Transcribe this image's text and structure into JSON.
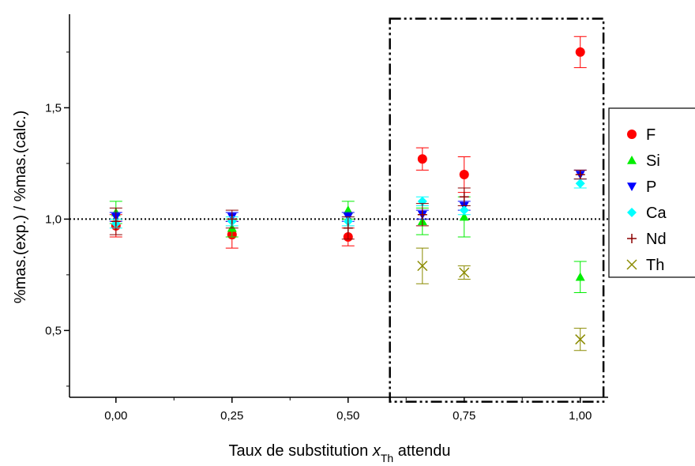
{
  "chart_data": {
    "type": "scatter",
    "xlabel_main": "Taux de substitution ",
    "xlabel_var": "x",
    "xlabel_sub": "Th",
    "xlabel_tail": " attendu",
    "ylabel": "%mas.(exp.) / %mas.(calc.)",
    "xlim": [
      -0.1,
      1.06
    ],
    "ylim": [
      0.2,
      1.92
    ],
    "x_ticks": [
      0.0,
      0.25,
      0.5,
      0.75,
      1.0
    ],
    "x_tick_labels": [
      "0,00",
      "0,25",
      "0,50",
      "0,75",
      "1,00"
    ],
    "y_ticks": [
      0.5,
      1.0,
      1.5
    ],
    "y_tick_labels": [
      "0,5",
      "1,0",
      "1,5"
    ],
    "reference_line": 1.0,
    "highlight_box": {
      "x": [
        0.59,
        1.05
      ],
      "y": [
        0.18,
        1.9
      ]
    },
    "series": [
      {
        "name": "F",
        "color": "#ff0000",
        "marker": "circle",
        "points": [
          [
            0.0,
            0.97,
            0.05
          ],
          [
            0.25,
            0.93,
            0.06
          ],
          [
            0.5,
            0.92,
            0.04
          ],
          [
            0.66,
            1.27,
            0.05
          ],
          [
            0.75,
            1.2,
            0.08
          ],
          [
            1.0,
            1.75,
            0.07
          ]
        ]
      },
      {
        "name": "Si",
        "color": "#00ee00",
        "marker": "triangle-up",
        "points": [
          [
            0.0,
            1.03,
            0.05
          ],
          [
            0.25,
            0.96,
            0.04
          ],
          [
            0.5,
            1.04,
            0.04
          ],
          [
            0.66,
            0.99,
            0.06
          ],
          [
            0.75,
            1.01,
            0.09
          ],
          [
            1.0,
            0.74,
            0.07
          ]
        ]
      },
      {
        "name": "P",
        "color": "#0000ff",
        "marker": "triangle-down",
        "points": [
          [
            0.0,
            1.01,
            0.02
          ],
          [
            0.25,
            1.01,
            0.02
          ],
          [
            0.5,
            1.01,
            0.02
          ],
          [
            0.66,
            1.02,
            0.02
          ],
          [
            0.75,
            1.06,
            0.02
          ],
          [
            1.0,
            1.2,
            0.02
          ]
        ]
      },
      {
        "name": "Ca",
        "color": "#00ffff",
        "marker": "diamond",
        "points": [
          [
            0.0,
            0.98,
            0.02
          ],
          [
            0.25,
            0.99,
            0.02
          ],
          [
            0.5,
            0.99,
            0.02
          ],
          [
            0.66,
            1.08,
            0.02
          ],
          [
            0.75,
            1.04,
            0.02
          ],
          [
            1.0,
            1.16,
            0.02
          ]
        ]
      },
      {
        "name": "Nd",
        "color": "#8b0000",
        "marker": "plus",
        "points": [
          [
            0.0,
            0.99,
            0.06
          ],
          [
            0.25,
            1.0,
            0.04
          ],
          [
            0.5,
            0.96,
            0.05
          ],
          [
            0.66,
            1.02,
            0.05
          ],
          [
            0.75,
            1.1,
            0.04
          ],
          [
            1.0,
            1.2,
            0.02
          ]
        ]
      },
      {
        "name": "Th",
        "color": "#8b8b00",
        "marker": "x",
        "points": [
          [
            0.66,
            0.79,
            0.08
          ],
          [
            0.75,
            0.76,
            0.03
          ],
          [
            1.0,
            0.46,
            0.05
          ]
        ]
      }
    ]
  }
}
